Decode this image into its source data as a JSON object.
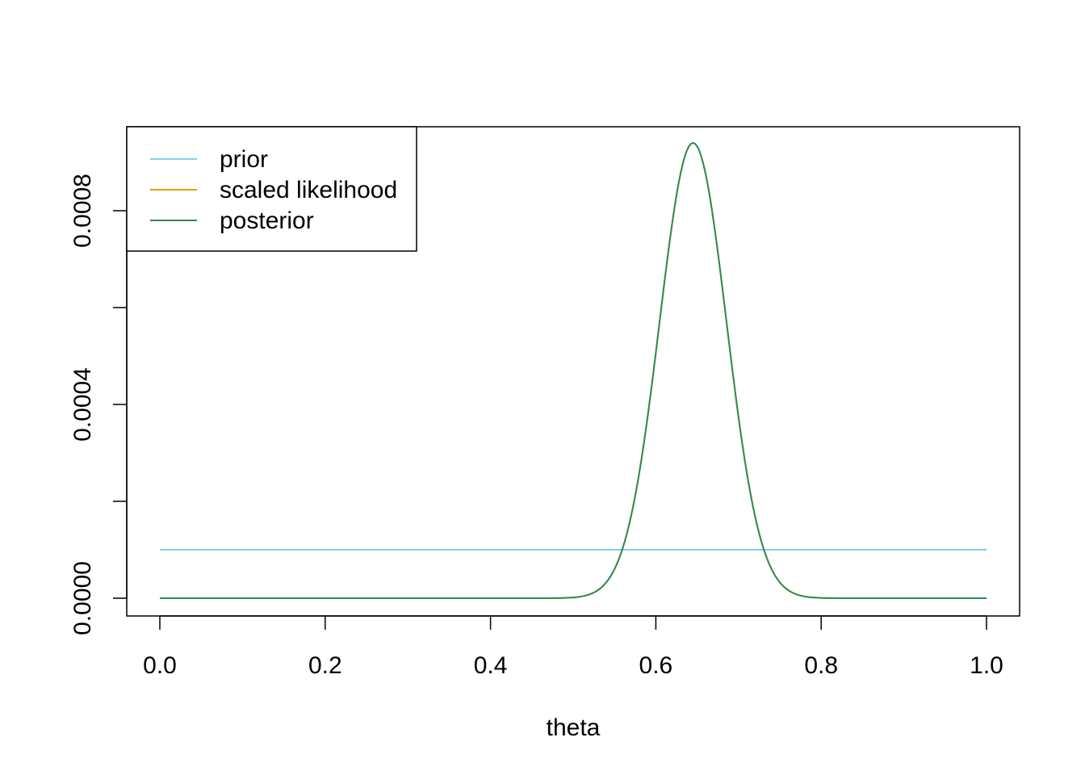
{
  "chart_data": {
    "type": "line",
    "title": "",
    "xlabel": "theta",
    "ylabel": "",
    "xlim": [
      0.0,
      1.0
    ],
    "ylim": [
      0.0,
      0.00095
    ],
    "x_ticks": [
      "0.0",
      "0.2",
      "0.4",
      "0.6",
      "0.8",
      "1.0"
    ],
    "y_ticks": [
      "0.0000",
      "0.0004",
      "0.0008"
    ],
    "y_minor_ticks": [
      0.0002,
      0.0006
    ],
    "grid": false,
    "legend_position": "top-left",
    "legend": [
      {
        "name": "prior",
        "color": "#87CEEB"
      },
      {
        "name": "scaled likelihood",
        "color": "#E69F00"
      },
      {
        "name": "posterior",
        "color": "#2E8B57"
      }
    ],
    "series": [
      {
        "name": "prior",
        "color": "#87CEEB",
        "description_values": "constant",
        "x": [
          0.0,
          1.0
        ],
        "values": [
          0.0001,
          0.0001
        ]
      },
      {
        "name": "scaled likelihood",
        "color": "#E69F00",
        "x": [
          0.0,
          0.45,
          0.48,
          0.5,
          0.52,
          0.54,
          0.56,
          0.58,
          0.6,
          0.62,
          0.64,
          0.645,
          0.65,
          0.66,
          0.68,
          0.7,
          0.72,
          0.74,
          0.76,
          0.78,
          0.8,
          1.0
        ],
        "values": [
          0.0,
          0.0,
          1e-06,
          5e-06,
          2e-05,
          7e-05,
          0.00018,
          0.00037,
          0.00061,
          0.00083,
          0.00094,
          0.00094,
          0.00093,
          0.00088,
          0.00069,
          0.00043,
          0.0002,
          6e-05,
          1.4e-05,
          2e-06,
          0.0,
          0.0
        ]
      },
      {
        "name": "posterior",
        "color": "#2E8B57",
        "x": [
          0.0,
          0.45,
          0.48,
          0.5,
          0.52,
          0.54,
          0.56,
          0.58,
          0.6,
          0.62,
          0.64,
          0.645,
          0.65,
          0.66,
          0.68,
          0.7,
          0.72,
          0.74,
          0.76,
          0.78,
          0.8,
          1.0
        ],
        "values": [
          0.0,
          0.0,
          1e-06,
          5e-06,
          2e-05,
          7e-05,
          0.00018,
          0.00037,
          0.00061,
          0.00083,
          0.00094,
          0.00094,
          0.00093,
          0.00088,
          0.00069,
          0.00043,
          0.0002,
          6e-05,
          1.4e-05,
          2e-06,
          0.0,
          0.0
        ]
      }
    ]
  }
}
